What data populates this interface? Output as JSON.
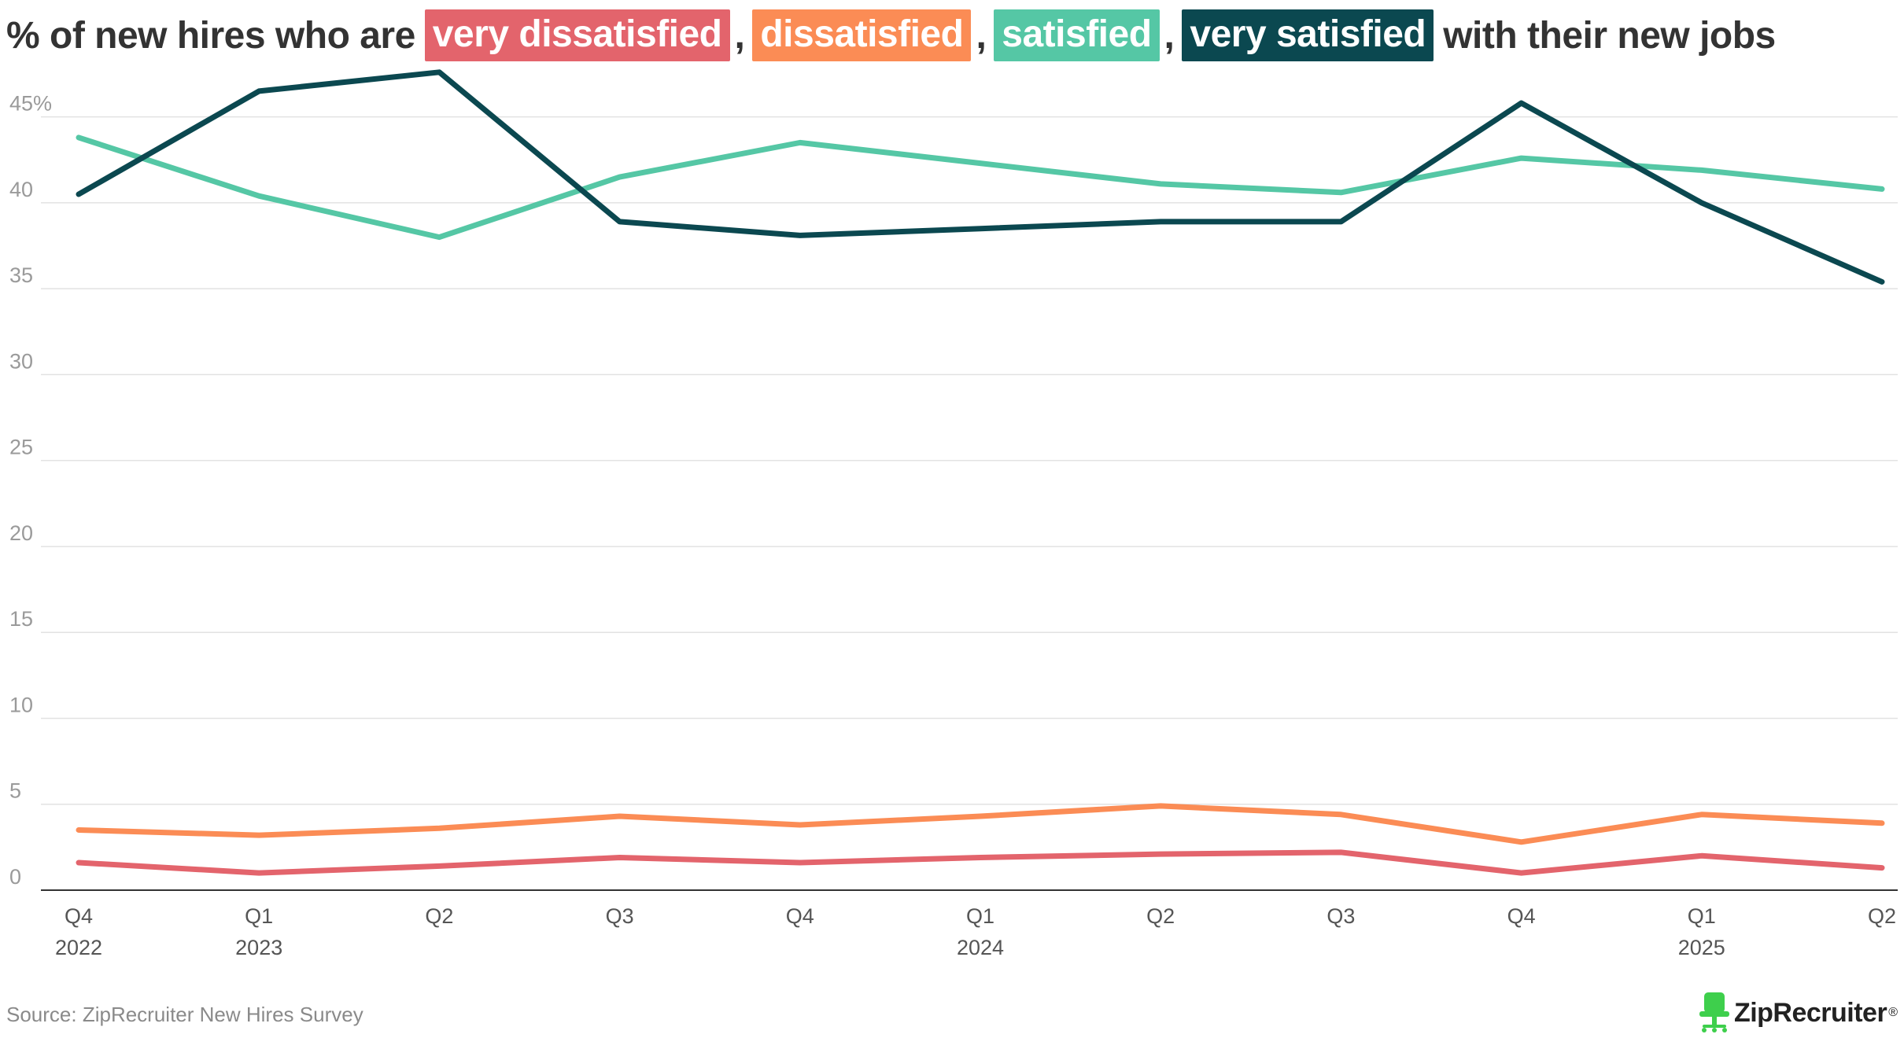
{
  "title": {
    "prefix": "% of new hires who are",
    "comma": ",",
    "suffix": "with their new jobs"
  },
  "colors": {
    "very_dissatisfied": "#E3646C",
    "dissatisfied": "#FB8C55",
    "satisfied": "#55C7A5",
    "very_satisfied": "#0B4850",
    "gridline": "#e2e2e2",
    "axis": "#333333",
    "brand_green": "#3ECF4C"
  },
  "chart_data": {
    "type": "line",
    "title": "% of new hires who are very dissatisfied, dissatisfied, satisfied, very satisfied with their new jobs",
    "xlabel": "",
    "ylabel": "",
    "ylim": [
      0,
      47.5
    ],
    "yticks": [
      0,
      5,
      10,
      15,
      20,
      25,
      30,
      35,
      40,
      45
    ],
    "ytick_labels": [
      "0",
      "5",
      "10",
      "15",
      "20",
      "25",
      "30",
      "35",
      "40",
      "45%"
    ],
    "grid": true,
    "categories": [
      "Q4 2022",
      "Q1 2023",
      "Q2 2023",
      "Q3 2023",
      "Q4 2023",
      "Q1 2024",
      "Q2 2024",
      "Q3 2024",
      "Q4 2024",
      "Q1 2025",
      "Q2 2025"
    ],
    "xtick_quarters": [
      "Q4",
      "Q1",
      "Q2",
      "Q3",
      "Q4",
      "Q1",
      "Q2",
      "Q3",
      "Q4",
      "Q1",
      "Q2"
    ],
    "xtick_years": [
      "2022",
      "2023",
      "",
      "",
      "",
      "2024",
      "",
      "",
      "",
      "2025",
      ""
    ],
    "series": [
      {
        "key": "very_dissatisfied",
        "name": "very dissatisfied",
        "values": [
          1.6,
          1.0,
          1.4,
          1.9,
          1.6,
          1.9,
          2.1,
          2.2,
          1.0,
          2.0,
          1.3
        ]
      },
      {
        "key": "dissatisfied",
        "name": "dissatisfied",
        "values": [
          3.5,
          3.2,
          3.6,
          4.3,
          3.8,
          4.3,
          4.9,
          4.4,
          2.8,
          4.4,
          3.9
        ]
      },
      {
        "key": "satisfied",
        "name": "satisfied",
        "values": [
          43.8,
          40.4,
          38.0,
          41.5,
          43.5,
          42.3,
          41.1,
          40.6,
          42.6,
          41.9,
          40.8
        ]
      },
      {
        "key": "very_satisfied",
        "name": "very satisfied",
        "values": [
          40.5,
          46.5,
          47.6,
          38.9,
          38.1,
          38.5,
          38.9,
          38.9,
          45.8,
          40.0,
          35.4
        ]
      }
    ]
  },
  "footer": {
    "source": "Source: ZipRecruiter New Hires Survey",
    "brand": "ZipRecruiter",
    "brand_mark": "®"
  }
}
